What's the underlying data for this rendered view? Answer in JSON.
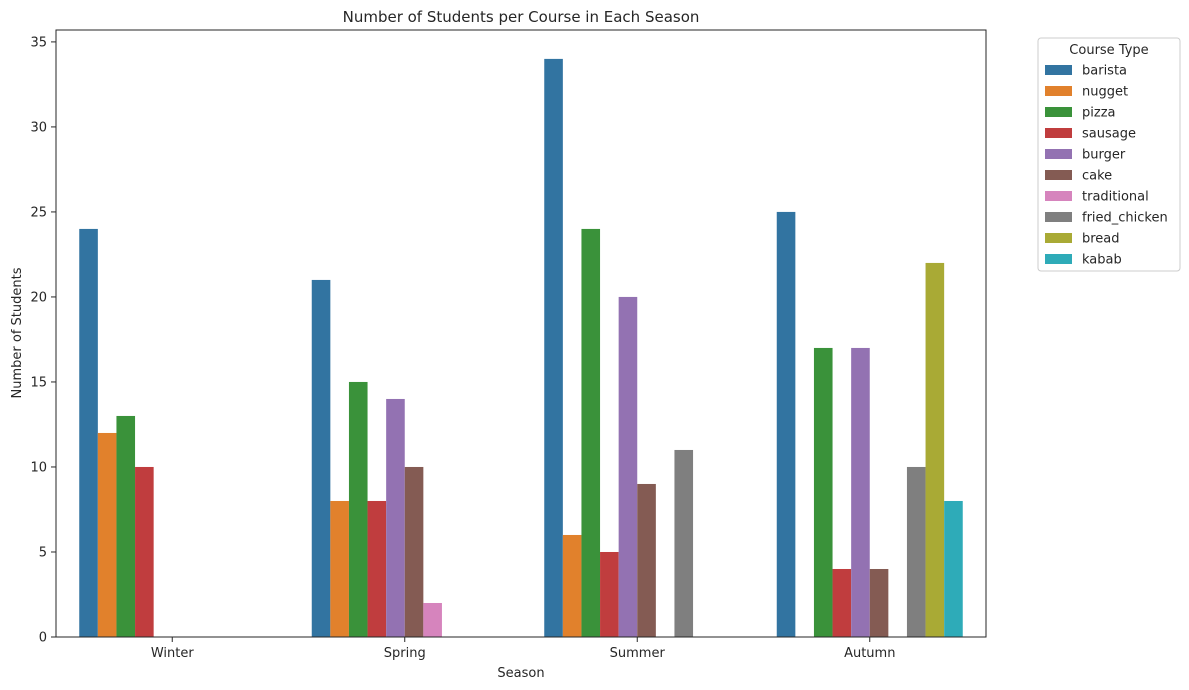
{
  "chart_data": {
    "type": "bar",
    "title": "Number of Students per Course in Each Season",
    "xlabel": "Season",
    "ylabel": "Number of Students",
    "categories": [
      "Winter",
      "Spring",
      "Summer",
      "Autumn"
    ],
    "ylim": [
      0,
      35.7
    ],
    "yticks": [
      0,
      5,
      10,
      15,
      20,
      25,
      30,
      35
    ],
    "grid": false,
    "legend": {
      "title": "Course Type",
      "placement": "upper-right-outside"
    },
    "series": [
      {
        "name": "barista",
        "color": "#3274a1",
        "values": [
          24,
          21,
          34,
          25
        ]
      },
      {
        "name": "nugget",
        "color": "#e1812c",
        "values": [
          12,
          8,
          6,
          null
        ]
      },
      {
        "name": "pizza",
        "color": "#3a923a",
        "values": [
          13,
          15,
          24,
          17
        ]
      },
      {
        "name": "sausage",
        "color": "#c03d3e",
        "values": [
          10,
          8,
          5,
          4
        ]
      },
      {
        "name": "burger",
        "color": "#9372b2",
        "values": [
          null,
          14,
          20,
          17
        ]
      },
      {
        "name": "cake",
        "color": "#845b53",
        "values": [
          null,
          10,
          9,
          4
        ]
      },
      {
        "name": "traditional",
        "color": "#d684bd",
        "values": [
          null,
          2,
          null,
          null
        ]
      },
      {
        "name": "fried_chicken",
        "color": "#7f7f7f",
        "values": [
          null,
          null,
          11,
          10
        ]
      },
      {
        "name": "bread",
        "color": "#a9aa35",
        "values": [
          null,
          null,
          null,
          22
        ]
      },
      {
        "name": "kabab",
        "color": "#2eabb8",
        "values": [
          null,
          null,
          null,
          8
        ]
      }
    ]
  }
}
